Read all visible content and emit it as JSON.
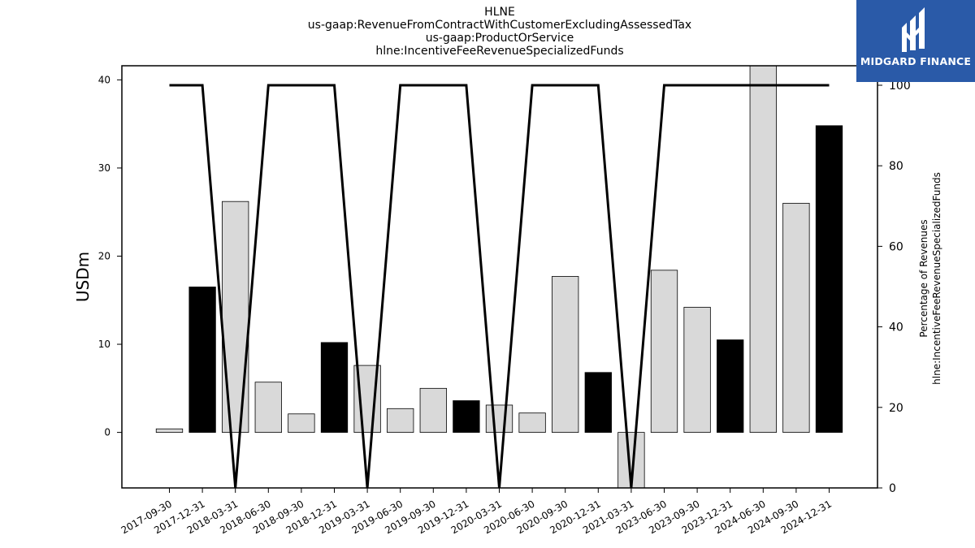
{
  "title_lines": [
    "HLNE",
    "us-gaap:RevenueFromContractWithCustomerExcludingAssessedTax",
    "us-gaap:ProductOrService",
    "hlne:IncentiveFeeRevenueSpecializedFunds"
  ],
  "logo": {
    "text": "MIDGARD FINANCE",
    "color": "#2a5aa8"
  },
  "chart_data": {
    "type": "bar",
    "title": "HLNE",
    "ylabel": "USDm",
    "ylabel_right": [
      "Percentage of Revenues",
      "hlne:IncentiveFeeRevenueSpecializedFunds"
    ],
    "ylim": [
      -6.3,
      41.6
    ],
    "ylim_right": [
      0,
      100
    ],
    "yticks": [
      0,
      10,
      20,
      30,
      40
    ],
    "yticks_right": [
      0,
      20,
      40,
      60,
      80,
      100
    ],
    "categories": [
      "2017-09-30",
      "2017-12-31",
      "2018-03-31",
      "2018-06-30",
      "2018-09-30",
      "2018-12-31",
      "2019-03-31",
      "2019-06-30",
      "2019-09-30",
      "2019-12-31",
      "2020-03-31",
      "2020-06-30",
      "2020-09-30",
      "2020-12-31",
      "2021-03-31",
      "2023-06-30",
      "2023-09-30",
      "2023-12-31",
      "2024-06-30",
      "2024-09-30",
      "2024-12-31"
    ],
    "values": [
      0.4,
      16.5,
      26.2,
      5.7,
      2.1,
      10.2,
      7.6,
      2.7,
      5.0,
      3.6,
      3.1,
      2.2,
      17.7,
      6.8,
      -6.3,
      18.4,
      14.2,
      10.5,
      41.6,
      26.0,
      34.8
    ],
    "bar_colors": [
      "#d9d9d9",
      "#000000",
      "#d9d9d9",
      "#d9d9d9",
      "#d9d9d9",
      "#000000",
      "#d9d9d9",
      "#d9d9d9",
      "#d9d9d9",
      "#000000",
      "#d9d9d9",
      "#d9d9d9",
      "#d9d9d9",
      "#000000",
      "#d9d9d9",
      "#d9d9d9",
      "#d9d9d9",
      "#000000",
      "#d9d9d9",
      "#d9d9d9",
      "#000000"
    ],
    "line_series": {
      "axis": "right",
      "color": "#000000",
      "values": [
        100,
        100,
        0,
        100,
        100,
        100,
        0,
        100,
        100,
        100,
        0,
        100,
        100,
        100,
        0,
        100,
        100,
        100,
        100,
        100,
        100
      ]
    }
  }
}
